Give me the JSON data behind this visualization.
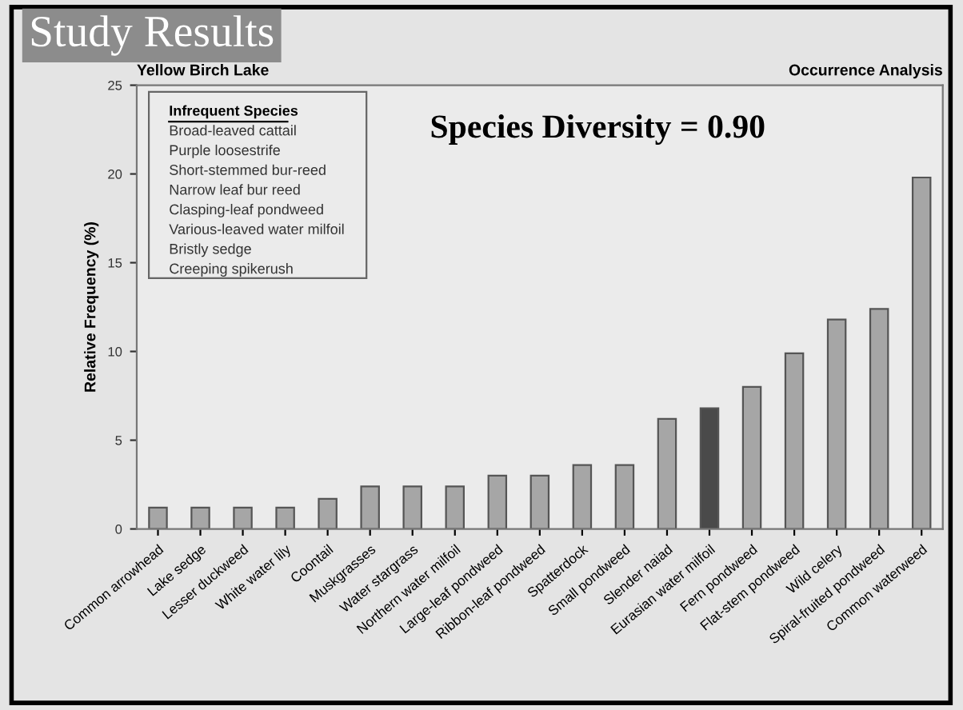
{
  "chart_data": {
    "type": "bar",
    "title": "Study Results",
    "subtitle": "Yellow Birch Lake",
    "ylabel": "Relative Frequency (%)",
    "categories": [
      "Common arrowhead",
      "Lake sedge",
      "Lesser duckweed",
      "White water lily",
      "Coontail",
      "Muskgrasses",
      "Water stargrass",
      "Northern water milfoil",
      "Large-leaf pondweed",
      "Ribbon-leaf pondweed",
      "Spatterdock",
      "Small pondweed",
      "Slender naiad",
      "Eurasian water milfoil",
      "Fern pondweed",
      "Flat-stem pondweed",
      "Wild celery",
      "Spiral-fruited pondweed",
      "Common waterweed"
    ],
    "values": [
      1.2,
      1.2,
      1.2,
      1.2,
      1.7,
      2.4,
      2.4,
      2.4,
      3.0,
      3.0,
      3.6,
      3.6,
      6.2,
      6.8,
      8.0,
      9.9,
      11.8,
      12.4,
      19.8
    ],
    "colors": [
      "#a6a6a6",
      "#a6a6a6",
      "#a6a6a6",
      "#a6a6a6",
      "#a6a6a6",
      "#a6a6a6",
      "#a6a6a6",
      "#a6a6a6",
      "#a6a6a6",
      "#a6a6a6",
      "#a6a6a6",
      "#a6a6a6",
      "#a6a6a6",
      "#4a4a4a",
      "#a6a6a6",
      "#a6a6a6",
      "#a6a6a6",
      "#a6a6a6",
      "#a6a6a6"
    ],
    "ylim": [
      0,
      25
    ],
    "yticks": [
      0,
      5,
      10,
      15,
      20,
      25
    ],
    "grid": false,
    "annotations": [
      "Occurrence Analysis",
      "Species Diversity = 0.90",
      "Infrequent Species",
      "Broad-leaved cattail",
      "Purple loosestrife",
      "Short-stemmed bur-reed",
      "Narrow leaf bur reed",
      "Clasping-leaf pondweed",
      "Various-leaved water milfoil",
      "Bristly sedge",
      "Creeping spikerush"
    ]
  }
}
